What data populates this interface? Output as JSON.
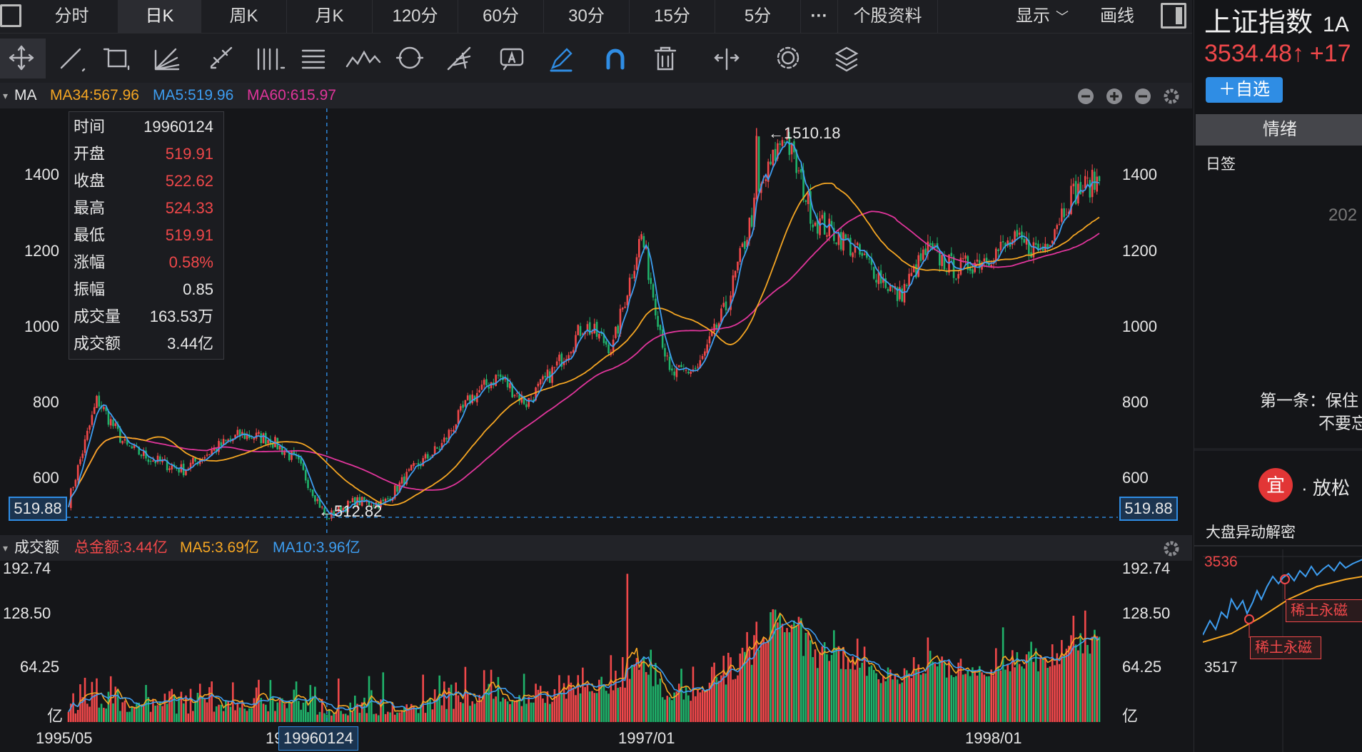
{
  "tabs": [
    "分时",
    "日K",
    "周K",
    "月K",
    "120分",
    "60分",
    "30分",
    "15分",
    "5分"
  ],
  "active_tab": "日K",
  "tab_more": "···",
  "tab_profile": "个股资料",
  "display_menu": "显示",
  "draw_menu": "画线",
  "tools": [
    "crosshair-tool",
    "line-tool",
    "rect-tool",
    "fan-tool",
    "ruler-tool",
    "vlines-tool",
    "text-band-tool",
    "wave-tool",
    "cycle-tool",
    "fib-tool",
    "label-tool",
    "pen-tool",
    "magnet-tool",
    "trash-tool",
    "split-tool",
    "settings-tool",
    "layers-tool"
  ],
  "main_indicator": {
    "name": "MA",
    "ma34": "MA34:567.96",
    "ma5": "MA5:519.96",
    "ma60": "MA60:615.97",
    "colors": {
      "ma34": "#f5a623",
      "ma5": "#3d9df0",
      "ma60": "#e0359b",
      "up": "#f0484a",
      "down": "#1fb26a"
    }
  },
  "info_box": [
    {
      "k": "时间",
      "v": "19960124",
      "color": "#e8e8e8"
    },
    {
      "k": "开盘",
      "v": "519.91",
      "color": "#f0484a"
    },
    {
      "k": "收盘",
      "v": "522.62",
      "color": "#f0484a"
    },
    {
      "k": "最高",
      "v": "524.33",
      "color": "#f0484a"
    },
    {
      "k": "最低",
      "v": "519.91",
      "color": "#f0484a"
    },
    {
      "k": "涨幅",
      "v": "0.58%",
      "color": "#f0484a"
    },
    {
      "k": "振幅",
      "v": "0.85",
      "color": "#e8e8e8"
    },
    {
      "k": "成交量",
      "v": "163.53万",
      "color": "#e8e8e8"
    },
    {
      "k": "成交额",
      "v": "3.44亿",
      "color": "#e8e8e8"
    }
  ],
  "price_axis": [
    "1400",
    "1200",
    "1000",
    "800",
    "600"
  ],
  "cursor_price": "519.88",
  "high_label": "←1510.18",
  "low_label": "←512.82",
  "volume_indicator": {
    "name": "成交额",
    "total": "总金额:3.44亿",
    "ma5": "MA5:3.69亿",
    "ma10": "MA10:3.96亿"
  },
  "volume_axis": [
    "192.74",
    "128.50",
    "64.25",
    "亿"
  ],
  "date_axis": [
    "1995/05",
    "1997/01",
    "1998/01"
  ],
  "cursor_date": "19960124",
  "cursor_date_prefix": "19",
  "chart_data": {
    "type": "candlestick",
    "title": "",
    "price_range": [
      512.82,
      1510.18
    ],
    "ylim": [
      480,
      1560
    ],
    "y_ticks": [
      600,
      800,
      1000,
      1200,
      1400
    ],
    "high": {
      "value": 1510.18,
      "date": "1997-05"
    },
    "low": {
      "value": 512.82,
      "date": "1996-01"
    },
    "x_labels": [
      "1995/05",
      "1997/01",
      "1998/01"
    ],
    "close_path": [
      {
        "date": "1995-05",
        "v": 560
      },
      {
        "date": "1995-05b",
        "v": 820
      },
      {
        "date": "1995-06",
        "v": 700
      },
      {
        "date": "1995-07",
        "v": 665
      },
      {
        "date": "1995-08",
        "v": 640
      },
      {
        "date": "1995-09",
        "v": 690
      },
      {
        "date": "1995-10",
        "v": 730
      },
      {
        "date": "1995-11",
        "v": 720
      },
      {
        "date": "1995-12",
        "v": 660
      },
      {
        "date": "1996-01",
        "v": 520
      },
      {
        "date": "1996-02",
        "v": 560
      },
      {
        "date": "1996-03",
        "v": 555
      },
      {
        "date": "1996-04",
        "v": 640
      },
      {
        "date": "1996-05",
        "v": 700
      },
      {
        "date": "1996-06",
        "v": 820
      },
      {
        "date": "1996-07",
        "v": 880
      },
      {
        "date": "1996-08",
        "v": 810
      },
      {
        "date": "1996-09",
        "v": 900
      },
      {
        "date": "1996-10",
        "v": 1010
      },
      {
        "date": "1996-11",
        "v": 950
      },
      {
        "date": "1996-12",
        "v": 1240
      },
      {
        "date": "1997-01",
        "v": 880
      },
      {
        "date": "1997-02",
        "v": 900
      },
      {
        "date": "1997-03",
        "v": 1060
      },
      {
        "date": "1997-04",
        "v": 1320
      },
      {
        "date": "1997-05",
        "v": 1500
      },
      {
        "date": "1997-06",
        "v": 1280
      },
      {
        "date": "1997-07",
        "v": 1230
      },
      {
        "date": "1997-08",
        "v": 1160
      },
      {
        "date": "1997-09",
        "v": 1080
      },
      {
        "date": "1997-10",
        "v": 1200
      },
      {
        "date": "1997-11",
        "v": 1150
      },
      {
        "date": "1997-12",
        "v": 1180
      },
      {
        "date": "1998-01",
        "v": 1220
      },
      {
        "date": "1998-02",
        "v": 1200
      },
      {
        "date": "1998-03",
        "v": 1340
      },
      {
        "date": "1998-04",
        "v": 1380
      }
    ],
    "volume": {
      "unit": "亿",
      "ylim": [
        0,
        192.74
      ],
      "ticks": [
        64.25,
        128.5,
        192.74
      ]
    }
  },
  "right_panel": {
    "title": "上证指数",
    "code_part": "1A",
    "price": "3534.48↑",
    "change": "+17",
    "add_btn": "＋自选",
    "mood_tab": "情绪",
    "daily": "日签",
    "year_fragment": "202",
    "rule_line1": "第一条：保住",
    "rule_line2": "不要忘",
    "yi_char": "宜",
    "yi_text": "· 放松",
    "section": "大盘异动解密",
    "mini_high": "3536",
    "mini_low": "3517",
    "tag1": "稀土永磁",
    "tag2": "稀土永磁"
  }
}
